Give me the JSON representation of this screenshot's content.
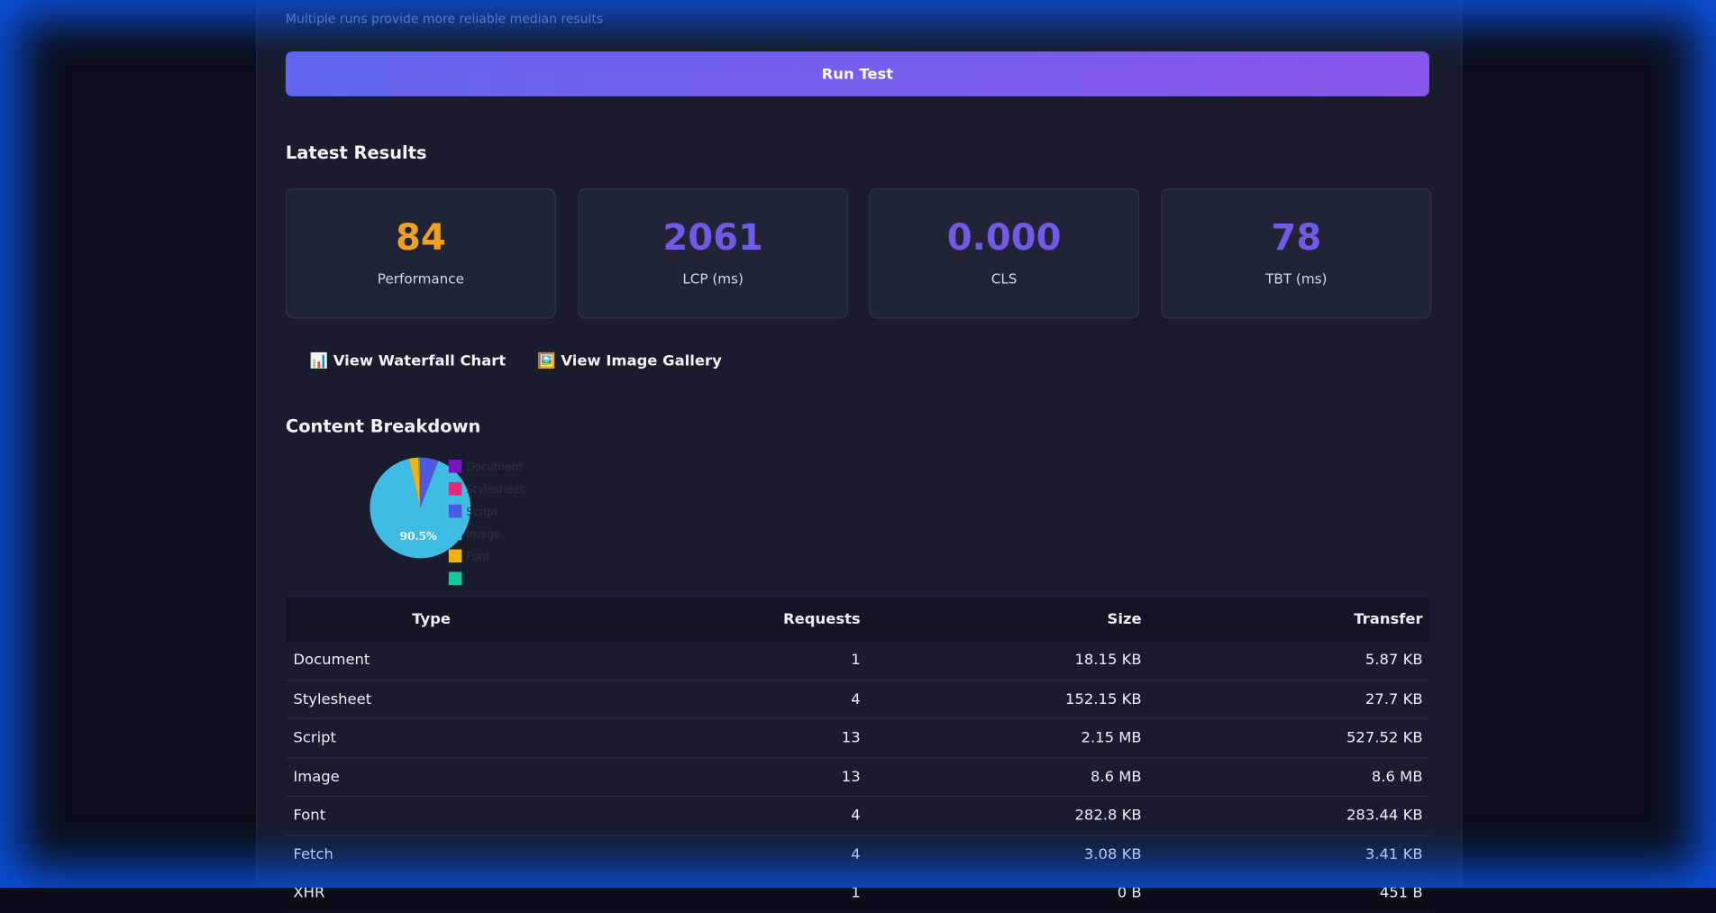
{
  "form": {
    "hint": "Multiple runs provide more reliable median results",
    "button": "Run Test"
  },
  "results": {
    "title": "Latest Results",
    "metrics": [
      {
        "value": "84",
        "label": "Performance",
        "color": "#f0a020"
      },
      {
        "value": "2061",
        "label": "LCP (ms)",
        "color": "#6f5ce6"
      },
      {
        "value": "0.000",
        "label": "CLS",
        "color": "#6f5ce6"
      },
      {
        "value": "78",
        "label": "TBT (ms)",
        "color": "#6f5ce6"
      }
    ]
  },
  "links": [
    "📊 View Waterfall Chart",
    "🖼️ View Image Gallery"
  ],
  "breakdown": {
    "title": "Content Breakdown"
  },
  "chart_data": {
    "type": "pie",
    "categories": [
      "Document",
      "Stylesheet",
      "Script",
      "Image",
      "Font",
      null
    ],
    "values": [
      0.1,
      0.3,
      5.5,
      90.5,
      3.0,
      0.6
    ],
    "value_labels": [
      null,
      null,
      null,
      "90.5%",
      null,
      null
    ],
    "colors": [
      "#7a12c4",
      "#e8287a",
      "#4e5ae6",
      "#3ebce4",
      "#f5b012",
      "#12c89c"
    ]
  },
  "table": {
    "header": [
      "Type",
      "Requests",
      "Size",
      "Transfer"
    ],
    "rows": [
      [
        "Document",
        "1",
        "18.15 KB",
        "5.87 KB"
      ],
      [
        "Stylesheet",
        "4",
        "152.15 KB",
        "27.7 KB"
      ],
      [
        "Script",
        "13",
        "2.15 MB",
        "527.52 KB"
      ],
      [
        "Image",
        "13",
        "8.6 MB",
        "8.6 MB"
      ],
      [
        "Font",
        "4",
        "282.8 KB",
        "283.44 KB"
      ],
      [
        "Fetch",
        "4",
        "3.08 KB",
        "3.41 KB"
      ],
      [
        "XHR",
        "1",
        "0 B",
        "451 B"
      ]
    ]
  }
}
